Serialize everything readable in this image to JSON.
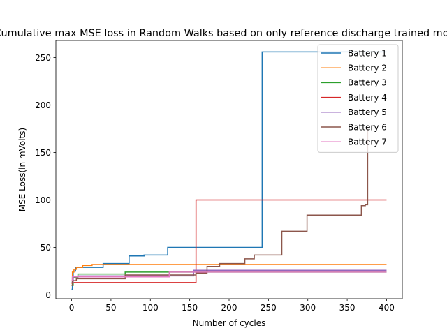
{
  "chart_data": {
    "type": "line",
    "title": "Cumulative max MSE loss in Random Walks based on only reference discharge trained model",
    "xlabel": "Number of cycles",
    "ylabel": "MSE Loss(in mVolts)",
    "xlim": [
      -20,
      420
    ],
    "ylim": [
      -4,
      268
    ],
    "xticks": [
      0,
      50,
      100,
      150,
      200,
      250,
      300,
      350,
      400
    ],
    "yticks": [
      0,
      50,
      100,
      150,
      200,
      250
    ],
    "grid": false,
    "legend_position": "top-right",
    "series": [
      {
        "name": "Battery 1",
        "color": "#1f77b4",
        "step": true,
        "x": [
          0,
          1,
          2,
          5,
          40,
          73,
          92,
          122,
          241,
          242,
          400
        ],
        "y": [
          6,
          18,
          25,
          29,
          33,
          41,
          42,
          50,
          50,
          256,
          256
        ]
      },
      {
        "name": "Battery 2",
        "color": "#ff7f0e",
        "step": true,
        "x": [
          0,
          1,
          3,
          6,
          14,
          26,
          400
        ],
        "y": [
          12,
          24,
          27,
          29,
          31,
          32,
          32
        ]
      },
      {
        "name": "Battery 3",
        "color": "#2ca02c",
        "step": true,
        "x": [
          0,
          2,
          8,
          68,
          400
        ],
        "y": [
          10,
          18,
          22,
          24,
          24
        ]
      },
      {
        "name": "Battery 4",
        "color": "#d62728",
        "step": true,
        "x": [
          0,
          157,
          158,
          400
        ],
        "y": [
          13,
          13,
          100,
          100
        ]
      },
      {
        "name": "Battery 5",
        "color": "#9467bd",
        "step": true,
        "x": [
          0,
          2,
          9,
          155,
          400
        ],
        "y": [
          13,
          19,
          20,
          26,
          26
        ]
      },
      {
        "name": "Battery 6",
        "color": "#8c564b",
        "step": true,
        "x": [
          0,
          1,
          6,
          68,
          158,
          172,
          188,
          220,
          232,
          267,
          299,
          368,
          373,
          376
        ],
        "y": [
          10,
          15,
          17,
          21,
          23,
          30,
          33,
          38,
          42,
          67,
          84,
          94,
          95,
          175
        ]
      },
      {
        "name": "Battery 7",
        "color": "#e377c2",
        "step": true,
        "x": [
          0,
          1,
          122,
          124,
          400
        ],
        "y": [
          15,
          19,
          19,
          24,
          24
        ]
      }
    ]
  }
}
